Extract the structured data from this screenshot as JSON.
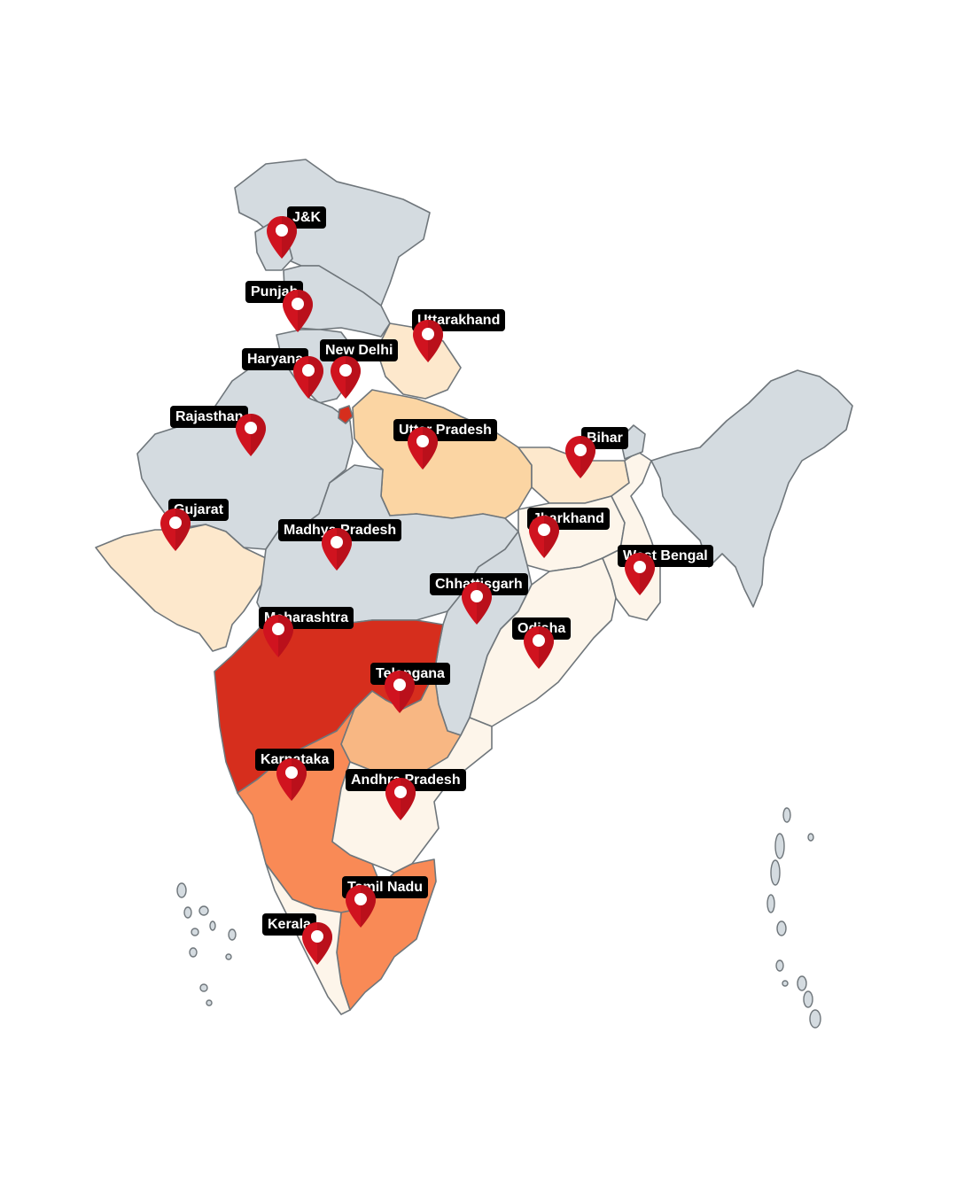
{
  "colors": {
    "grey": "#d4dbe0",
    "very_light": "#fdf5ea",
    "light": "#fde8cc",
    "medium": "#fbd5a3",
    "peach": "#f8b783",
    "orange": "#f98a56",
    "dark_red": "#d62e1d",
    "pin_red": "#d0131f",
    "label_bg": "#000000",
    "label_text": "#ffffff"
  },
  "icons": {
    "marker": "map-pin-icon"
  },
  "states": [
    {
      "key": "jk",
      "label": "J&K",
      "fill": "grey"
    },
    {
      "key": "punjab",
      "label": "Punjab",
      "fill": "grey"
    },
    {
      "key": "uttarakhand",
      "label": "Uttarakhand",
      "fill": "light"
    },
    {
      "key": "haryana",
      "label": "Haryana",
      "fill": "grey"
    },
    {
      "key": "new_delhi",
      "label": "New Delhi",
      "fill": "dark_red"
    },
    {
      "key": "rajasthan",
      "label": "Rajasthan",
      "fill": "grey"
    },
    {
      "key": "uttar_pradesh",
      "label": "Uttar Pradesh",
      "fill": "medium"
    },
    {
      "key": "bihar",
      "label": "Bihar",
      "fill": "light"
    },
    {
      "key": "gujarat",
      "label": "Gujarat",
      "fill": "light"
    },
    {
      "key": "madhya_pradesh",
      "label": "Madhya Pradesh",
      "fill": "grey"
    },
    {
      "key": "jharkhand",
      "label": "Jharkhand",
      "fill": "very_light"
    },
    {
      "key": "west_bengal",
      "label": "West Bengal",
      "fill": "very_light"
    },
    {
      "key": "chhattisgarh",
      "label": "Chhattisgarh",
      "fill": "grey"
    },
    {
      "key": "maharashtra",
      "label": "Maharashtra",
      "fill": "dark_red"
    },
    {
      "key": "odisha",
      "label": "Odisha",
      "fill": "very_light"
    },
    {
      "key": "telangana",
      "label": "Telangana",
      "fill": "peach"
    },
    {
      "key": "karnataka",
      "label": "Karnataka",
      "fill": "orange"
    },
    {
      "key": "andhra_pradesh",
      "label": "Andhra Pradesh",
      "fill": "very_light"
    },
    {
      "key": "tamil_nadu",
      "label": "Tamil Nadu",
      "fill": "orange"
    },
    {
      "key": "kerala",
      "label": "Kerala",
      "fill": "very_light"
    }
  ]
}
